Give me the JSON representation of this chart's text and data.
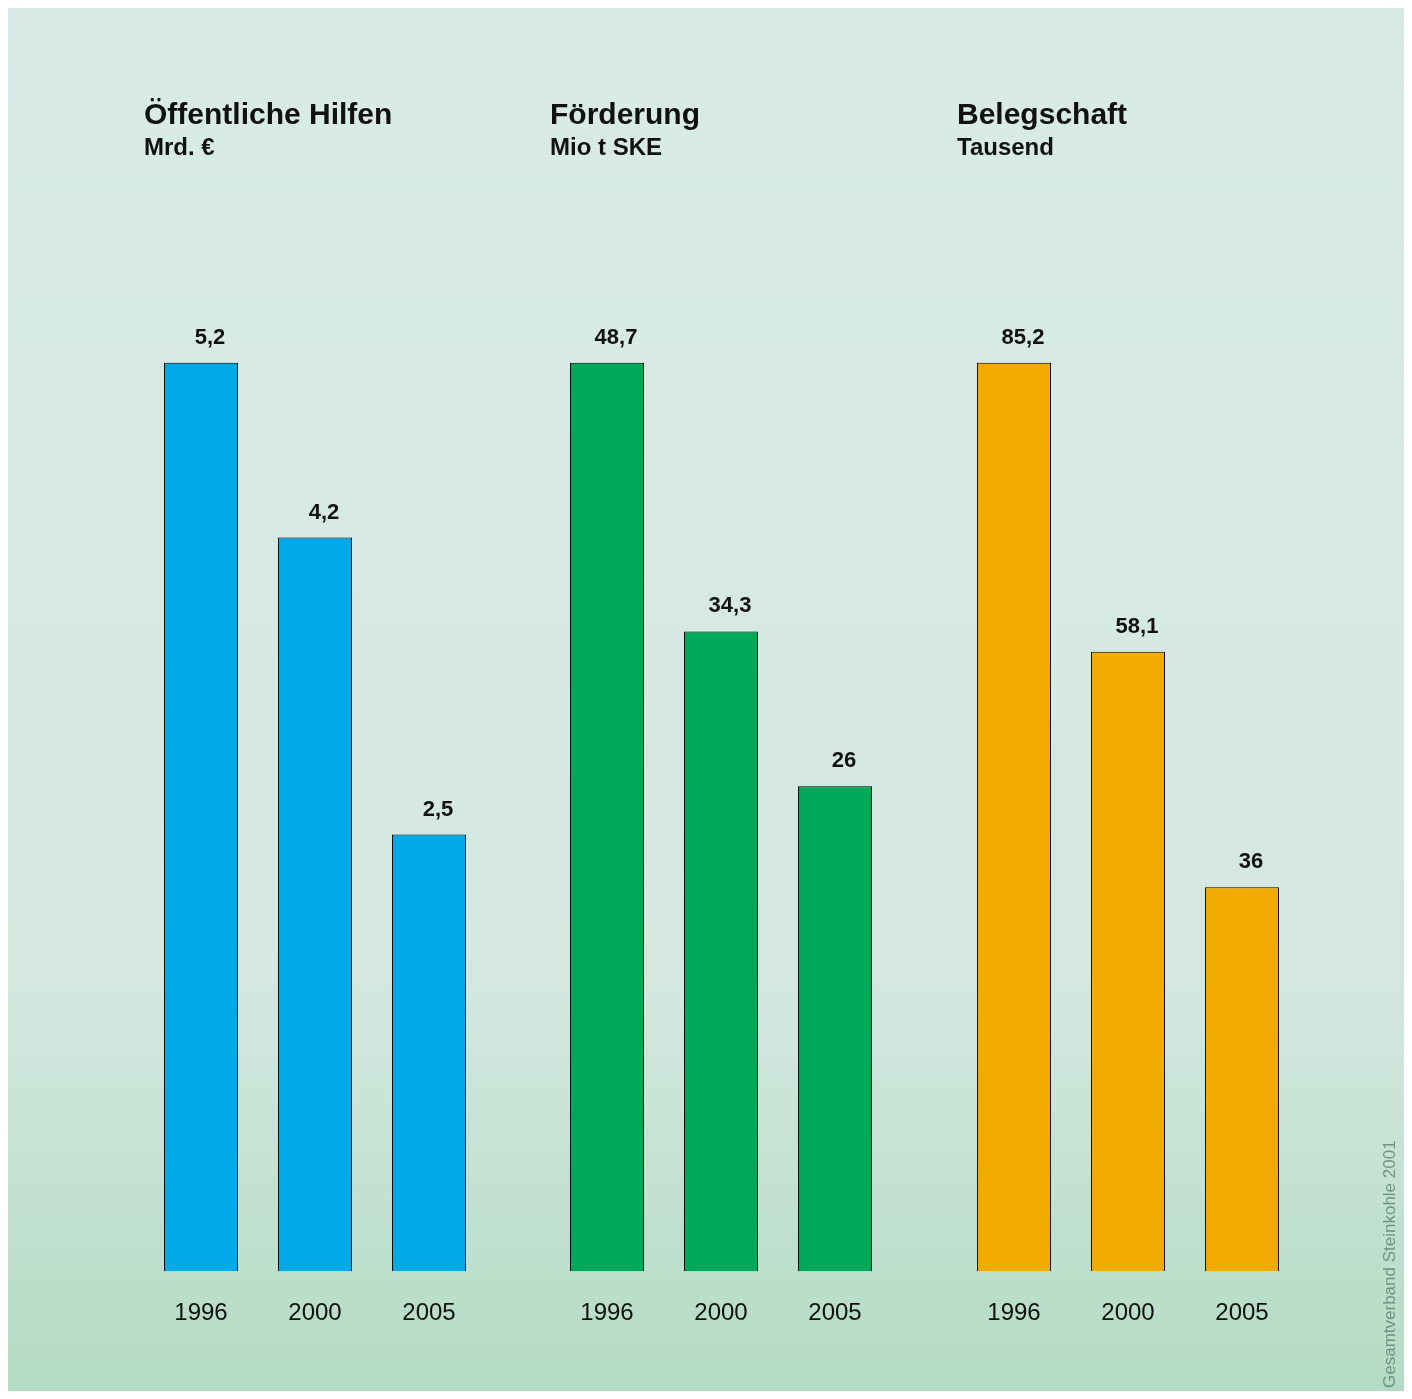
{
  "chart_data": [
    {
      "type": "bar",
      "title": "Öffentliche Hilfen",
      "subtitle": "Mrd. €",
      "categories": [
        "1996",
        "2000",
        "2005"
      ],
      "values": [
        5.2,
        4.2,
        2.5
      ],
      "color": "#00aae8",
      "data_labels": true,
      "value_labels": [
        "5,2",
        "4,2",
        "2,5"
      ],
      "grid": false,
      "legend": false
    },
    {
      "type": "bar",
      "title": "Förderung",
      "subtitle": "Mio t SKE",
      "categories": [
        "1996",
        "2000",
        "2005"
      ],
      "values": [
        48.7,
        34.3,
        26
      ],
      "color": "#00a85a",
      "data_labels": true,
      "value_labels": [
        "48,7",
        "34,3",
        "26"
      ],
      "grid": false,
      "legend": false
    },
    {
      "type": "bar",
      "title": "Belegschaft",
      "subtitle": "Tausend",
      "categories": [
        "1996",
        "2000",
        "2005"
      ],
      "values": [
        85.2,
        58.1,
        36
      ],
      "color": "#f0aa00",
      "data_labels": true,
      "value_labels": [
        "85,2",
        "58,1",
        "36"
      ],
      "grid": false,
      "legend": false,
      "annotations": [
        "Gesamtverband Steinkohle 2001"
      ]
    }
  ]
}
